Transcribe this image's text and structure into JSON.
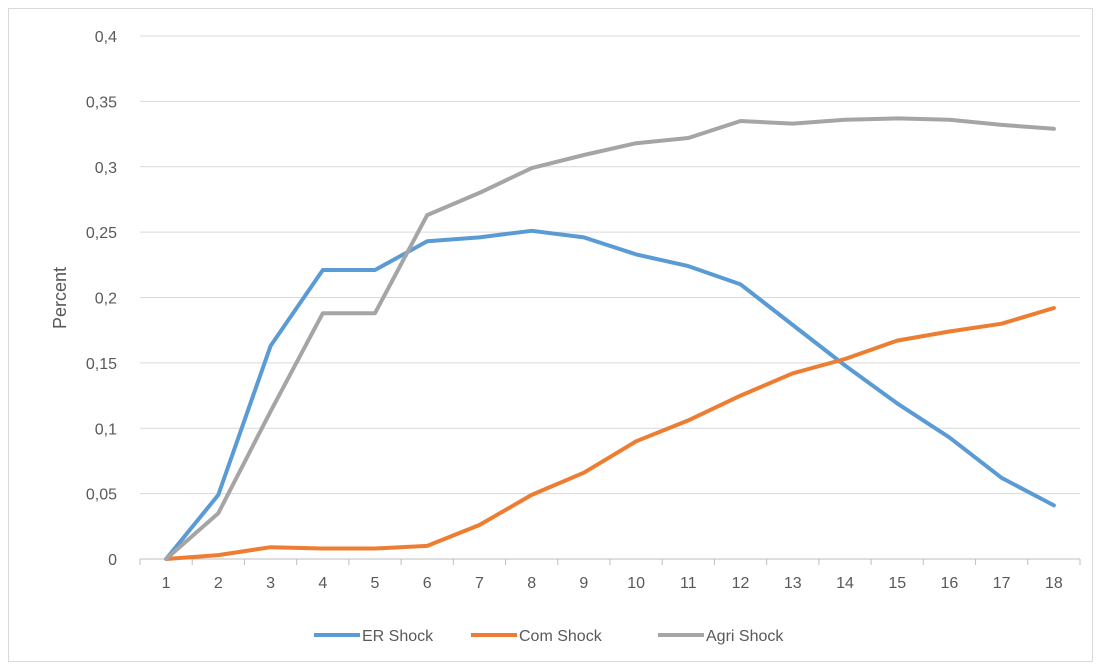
{
  "chart_data": {
    "type": "line",
    "title": "",
    "xlabel": "",
    "ylabel": "Percent",
    "ylim": [
      0,
      0.4
    ],
    "yticks": [
      "0",
      "0,05",
      "0,1",
      "0,15",
      "0,2",
      "0,25",
      "0,3",
      "0,35",
      "0,4"
    ],
    "ytick_values": [
      0,
      0.05,
      0.1,
      0.15,
      0.2,
      0.25,
      0.3,
      0.35,
      0.4
    ],
    "x": [
      "1",
      "2",
      "3",
      "4",
      "5",
      "6",
      "7",
      "8",
      "9",
      "10",
      "11",
      "12",
      "13",
      "14",
      "15",
      "16",
      "17",
      "18"
    ],
    "grid": true,
    "legend": "bottom",
    "series": [
      {
        "name": "ER Shock",
        "color": "#5b9bd5",
        "values": [
          0,
          0.049,
          0.163,
          0.221,
          0.221,
          0.243,
          0.246,
          0.251,
          0.246,
          0.233,
          0.224,
          0.21,
          0.179,
          0.148,
          0.119,
          0.093,
          0.062,
          0.041
        ]
      },
      {
        "name": "Com Shock",
        "color": "#ed7d31",
        "values": [
          0,
          0.003,
          0.009,
          0.008,
          0.008,
          0.01,
          0.026,
          0.049,
          0.066,
          0.09,
          0.106,
          0.125,
          0.142,
          0.153,
          0.167,
          0.174,
          0.18,
          0.192
        ]
      },
      {
        "name": "Agri Shock",
        "color": "#a5a5a5",
        "values": [
          0,
          0.035,
          0.113,
          0.188,
          0.188,
          0.263,
          0.28,
          0.299,
          0.309,
          0.318,
          0.322,
          0.335,
          0.333,
          0.336,
          0.337,
          0.336,
          0.332,
          0.329
        ]
      }
    ]
  }
}
